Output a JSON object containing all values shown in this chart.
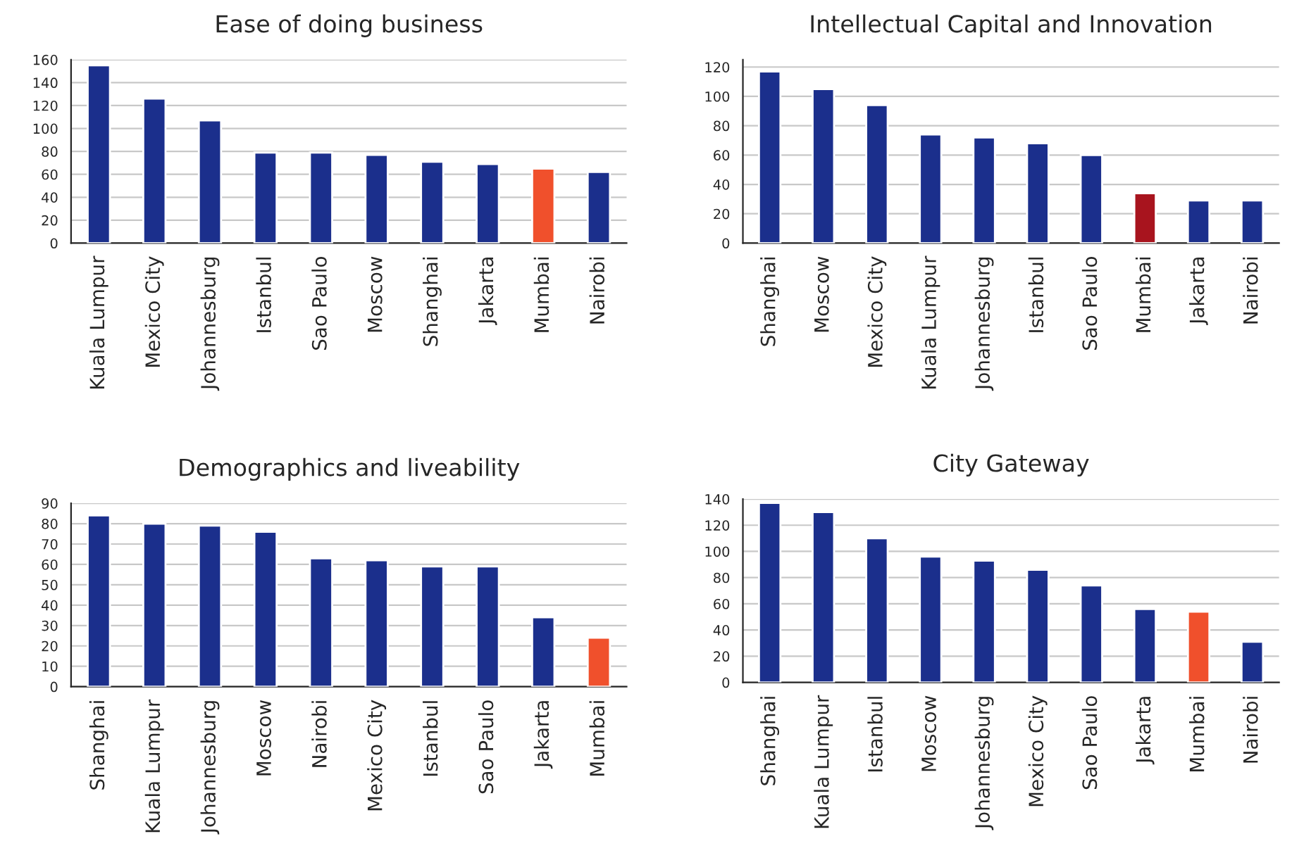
{
  "chart_data": [
    {
      "type": "bar",
      "title": "Ease of doing business",
      "categories": [
        "Kuala Lumpur",
        "Mexico City",
        "Johannesburg",
        "Istanbul",
        "Sao Paulo",
        "Moscow",
        "Shanghai",
        "Jakarta",
        "Mumbai",
        "Nairobi"
      ],
      "values": [
        155,
        126,
        107,
        79,
        79,
        77,
        71,
        69,
        65,
        62
      ],
      "colors": [
        "#1b2f8c",
        "#1b2f8c",
        "#1b2f8c",
        "#1b2f8c",
        "#1b2f8c",
        "#1b2f8c",
        "#1b2f8c",
        "#1b2f8c",
        "#f0502c",
        "#1b2f8c"
      ],
      "ylim": [
        0,
        160
      ],
      "yticks": [
        0,
        20,
        40,
        60,
        80,
        100,
        120,
        140,
        160
      ],
      "grid": "y"
    },
    {
      "type": "bar",
      "title": "Intellectual Capital and Innovation",
      "categories": [
        "Shanghai",
        "Moscow",
        "Mexico City",
        "Kuala Lumpur",
        "Johannesburg",
        "Istanbul",
        "Sao Paulo",
        "Mumbai",
        "Jakarta",
        "Nairobi"
      ],
      "values": [
        117,
        105,
        94,
        74,
        72,
        68,
        60,
        34,
        29,
        29
      ],
      "colors": [
        "#1b2f8c",
        "#1b2f8c",
        "#1b2f8c",
        "#1b2f8c",
        "#1b2f8c",
        "#1b2f8c",
        "#1b2f8c",
        "#a8141e",
        "#1b2f8c",
        "#1b2f8c"
      ],
      "ylim": [
        0,
        125
      ],
      "yticks": [
        0,
        20,
        40,
        60,
        80,
        100,
        120
      ],
      "grid": "y"
    },
    {
      "type": "bar",
      "title": "Demographics and liveability",
      "categories": [
        "Shanghai",
        "Kuala Lumpur",
        "Johannesburg",
        "Moscow",
        "Nairobi",
        "Mexico City",
        "Istanbul",
        "Sao Paulo",
        "Jakarta",
        "Mumbai"
      ],
      "values": [
        84,
        80,
        79,
        76,
        63,
        62,
        59,
        59,
        34,
        24
      ],
      "colors": [
        "#1b2f8c",
        "#1b2f8c",
        "#1b2f8c",
        "#1b2f8c",
        "#1b2f8c",
        "#1b2f8c",
        "#1b2f8c",
        "#1b2f8c",
        "#1b2f8c",
        "#f0502c"
      ],
      "ylim": [
        0,
        90
      ],
      "yticks": [
        0,
        10,
        20,
        30,
        40,
        50,
        60,
        70,
        80,
        90
      ],
      "grid": "y"
    },
    {
      "type": "bar",
      "title": "City Gateway",
      "categories": [
        "Shanghai",
        "Kuala Lumpur",
        "Istanbul",
        "Moscow",
        "Johannesburg",
        "Mexico City",
        "Sao Paulo",
        "Jakarta",
        "Mumbai",
        "Nairobi"
      ],
      "values": [
        137,
        130,
        110,
        96,
        93,
        86,
        74,
        56,
        54,
        31
      ],
      "colors": [
        "#1b2f8c",
        "#1b2f8c",
        "#1b2f8c",
        "#1b2f8c",
        "#1b2f8c",
        "#1b2f8c",
        "#1b2f8c",
        "#1b2f8c",
        "#f0502c",
        "#1b2f8c"
      ],
      "ylim": [
        0,
        140
      ],
      "yticks": [
        0,
        20,
        40,
        60,
        80,
        100,
        120,
        140
      ],
      "grid": "y"
    }
  ]
}
